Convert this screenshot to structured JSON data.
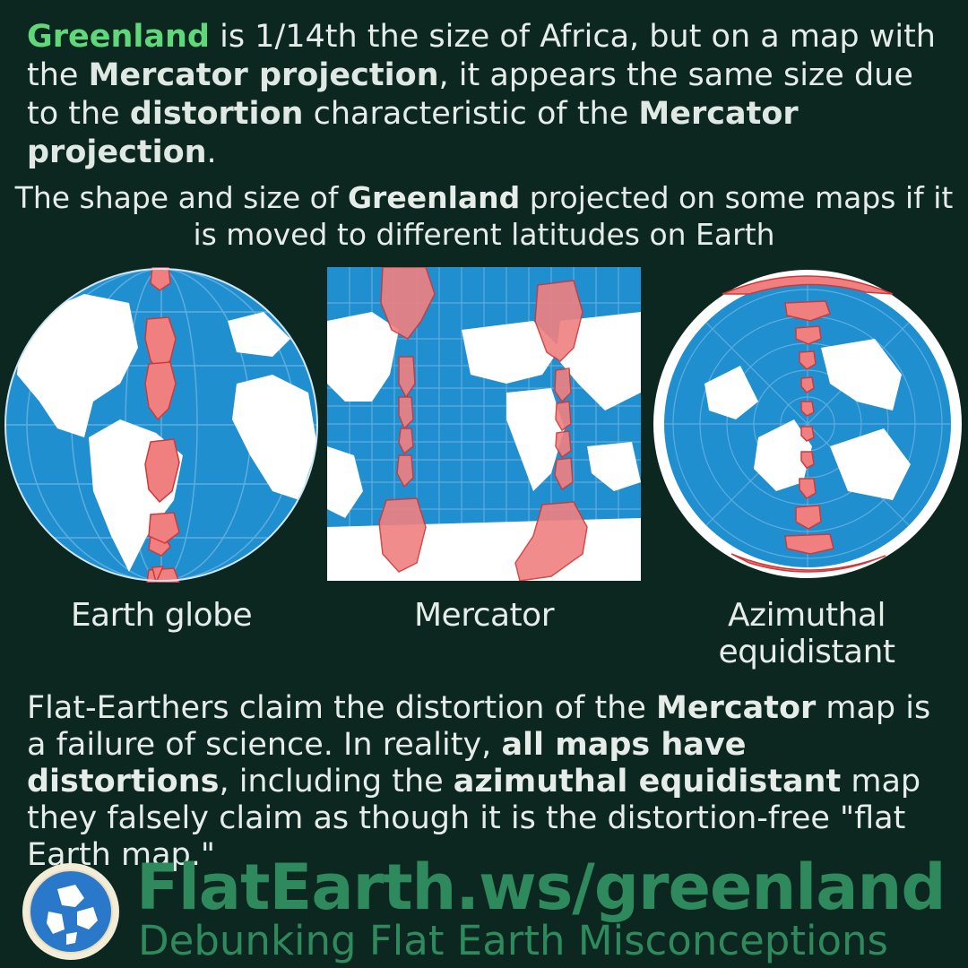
{
  "intro": {
    "greenland": "Greenland",
    "p1": " is 1/14th the size of Africa, but on a map with the ",
    "mercator1": "Mercator projection",
    "p2": ", it appears the same size due to the ",
    "distortion": "distortion",
    "p3": " characteristic of the ",
    "mercator2": "Mercator projection",
    "p4": "."
  },
  "subtitle": {
    "p1": "The shape and size of ",
    "greenland": "Greenland",
    "p2": " projected on some maps if it is moved to different latitudes on Earth"
  },
  "maps": [
    {
      "label": "Earth globe"
    },
    {
      "label": "Mercator"
    },
    {
      "label": "Azimuthal equidistant"
    }
  ],
  "claim": {
    "p1": "Flat-Earthers claim the distortion of the ",
    "mercator": "Mercator",
    "p2": " map is a failure of science. In reality, ",
    "all_maps": "all maps have distortions",
    "p3": ", including the ",
    "azimuthal": "azimuthal equidistant",
    "p4": " map they falsely claim as though it is the distortion-free \"flat Earth map.\""
  },
  "footer": {
    "url": "FlatEarth.ws/greenland",
    "tagline": "Debunking Flat Earth Misconceptions"
  },
  "colors": {
    "background": "#0c2620",
    "ocean": "#1f8fd0",
    "land": "#ffffff",
    "greenland_overlay": "#f08080",
    "accent_green": "#5fd77a",
    "footer_green": "#2e8a5c"
  }
}
